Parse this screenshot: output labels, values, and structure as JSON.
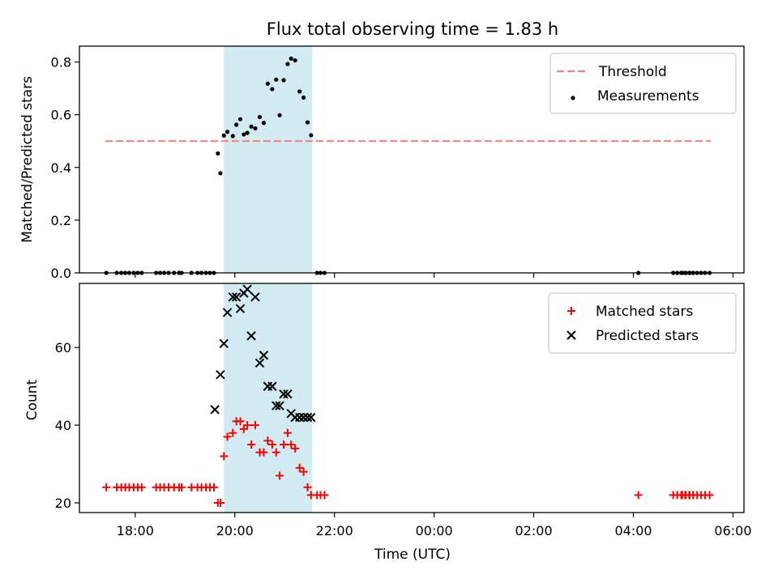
{
  "chart_data": [
    {
      "type": "scatter",
      "title": "Flux total observing time = 1.83 h",
      "xlabel": "",
      "ylabel": "Matched/Predicted stars",
      "ylim": [
        0,
        0.86
      ],
      "yticks": [
        0.0,
        0.2,
        0.4,
        0.6,
        0.8
      ],
      "ytick_labels": [
        "0.0",
        "0.2",
        "0.4",
        "0.6",
        "0.8"
      ],
      "highlight_span": {
        "x_start": 19.78,
        "x_end": 21.55,
        "color": "#add8e6"
      },
      "threshold": {
        "name": "Threshold",
        "value": 0.5,
        "x_start": 17.4,
        "x_end": 29.55,
        "color": "#ff7f7f"
      },
      "legend": {
        "position": "top-right"
      },
      "series": [
        {
          "name": "Measurements",
          "color": "#000000",
          "marker": "dot",
          "x": [
            17.42,
            17.63,
            17.72,
            17.8,
            17.88,
            17.97,
            18.05,
            18.13,
            18.42,
            18.5,
            18.58,
            18.67,
            18.78,
            18.88,
            18.93,
            19.13,
            19.25,
            19.33,
            19.42,
            19.5,
            19.58,
            19.66,
            19.71,
            19.78,
            19.85,
            19.96,
            20.03,
            20.11,
            20.18,
            20.25,
            20.33,
            20.41,
            20.5,
            20.58,
            20.66,
            20.75,
            20.83,
            20.9,
            20.98,
            21.06,
            21.13,
            21.21,
            21.3,
            21.38,
            21.46,
            21.53,
            21.65,
            21.72,
            21.8,
            28.98,
            29.05,
            29.13,
            29.2,
            28.1,
            28.8,
            28.88,
            28.96,
            29.04,
            29.12,
            29.2,
            29.28,
            29.36,
            29.44,
            29.53
          ],
          "y": [
            0.0,
            0.0,
            0.0,
            0.0,
            0.0,
            0.0,
            0.0,
            0.0,
            0.0,
            0.0,
            0.0,
            0.0,
            0.0,
            0.0,
            0.0,
            0.0,
            0.0,
            0.0,
            0.0,
            0.0,
            0.0,
            0.453,
            0.378,
            0.521,
            0.535,
            0.519,
            0.562,
            0.583,
            0.525,
            0.531,
            0.555,
            0.548,
            0.591,
            0.569,
            0.718,
            0.697,
            0.733,
            0.598,
            0.731,
            0.792,
            0.813,
            0.806,
            0.688,
            0.665,
            0.571,
            0.522,
            0.0,
            0.0,
            0.0,
            0.0,
            0.0,
            0.0,
            0.0,
            0.0,
            0.0,
            0.0,
            0.0,
            0.0,
            0.0,
            0.0,
            0.0,
            0.0,
            0.0,
            0.0
          ]
        }
      ]
    },
    {
      "type": "scatter",
      "title": "",
      "xlabel": "Time (UTC)",
      "ylabel": "Count",
      "ylim": [
        17.5,
        76.5
      ],
      "yticks": [
        20,
        40,
        60
      ],
      "ytick_labels": [
        "20",
        "40",
        "60"
      ],
      "xlim": [
        16.88,
        30.22
      ],
      "xticks": [
        18,
        20,
        22,
        24,
        26,
        28,
        30
      ],
      "xtick_labels": [
        "18:00",
        "20:00",
        "22:00",
        "00:00",
        "02:00",
        "04:00",
        "06:00"
      ],
      "highlight_span": {
        "x_start": 19.78,
        "x_end": 21.55,
        "color": "#add8e6"
      },
      "legend": {
        "position": "top-right"
      },
      "series": [
        {
          "name": "Matched stars",
          "color": "#ff0000",
          "marker": "plus",
          "x": [
            17.42,
            17.63,
            17.72,
            17.8,
            17.88,
            17.97,
            18.05,
            18.13,
            18.42,
            18.5,
            18.58,
            18.67,
            18.78,
            18.88,
            18.93,
            19.13,
            19.25,
            19.33,
            19.42,
            19.5,
            19.58,
            19.66,
            19.71,
            19.78,
            19.85,
            19.96,
            20.03,
            20.11,
            20.18,
            20.25,
            20.33,
            20.41,
            20.5,
            20.58,
            20.66,
            20.75,
            20.83,
            20.9,
            20.98,
            21.06,
            21.13,
            21.21,
            21.3,
            21.38,
            21.46,
            21.53,
            21.65,
            21.72,
            21.8,
            28.98,
            29.05,
            29.13,
            29.2,
            28.1,
            28.8,
            28.88,
            28.96,
            29.04,
            29.12,
            29.2,
            29.28,
            29.36,
            29.44,
            29.53
          ],
          "y": [
            24,
            24,
            24,
            24,
            24,
            24,
            24,
            24,
            24,
            24,
            24,
            24,
            24,
            24,
            24,
            24,
            24,
            24,
            24,
            24,
            24,
            20,
            20,
            32,
            37,
            38,
            41,
            41,
            39,
            40,
            35,
            40,
            33,
            33,
            36,
            35,
            33,
            27,
            35,
            38,
            35,
            34,
            29,
            28,
            24,
            22,
            22,
            22,
            22,
            22,
            22,
            22,
            22,
            22,
            22,
            22,
            22,
            22,
            22,
            22,
            22,
            22,
            22,
            22
          ]
        },
        {
          "name": "Predicted stars",
          "color": "#000000",
          "marker": "x",
          "x": [
            19.6,
            19.71,
            19.78,
            19.85,
            19.96,
            20.03,
            20.11,
            20.18,
            20.25,
            20.33,
            20.41,
            20.5,
            20.58,
            20.66,
            20.75,
            20.83,
            20.9,
            20.98,
            21.06,
            21.13,
            21.21,
            21.3,
            21.38,
            21.46,
            21.53
          ],
          "y": [
            44,
            53,
            61,
            69,
            73,
            73,
            70,
            74,
            75,
            63,
            73,
            56,
            58,
            50,
            50,
            45,
            45,
            48,
            48,
            43,
            42,
            42,
            42,
            42,
            42
          ]
        }
      ]
    }
  ]
}
